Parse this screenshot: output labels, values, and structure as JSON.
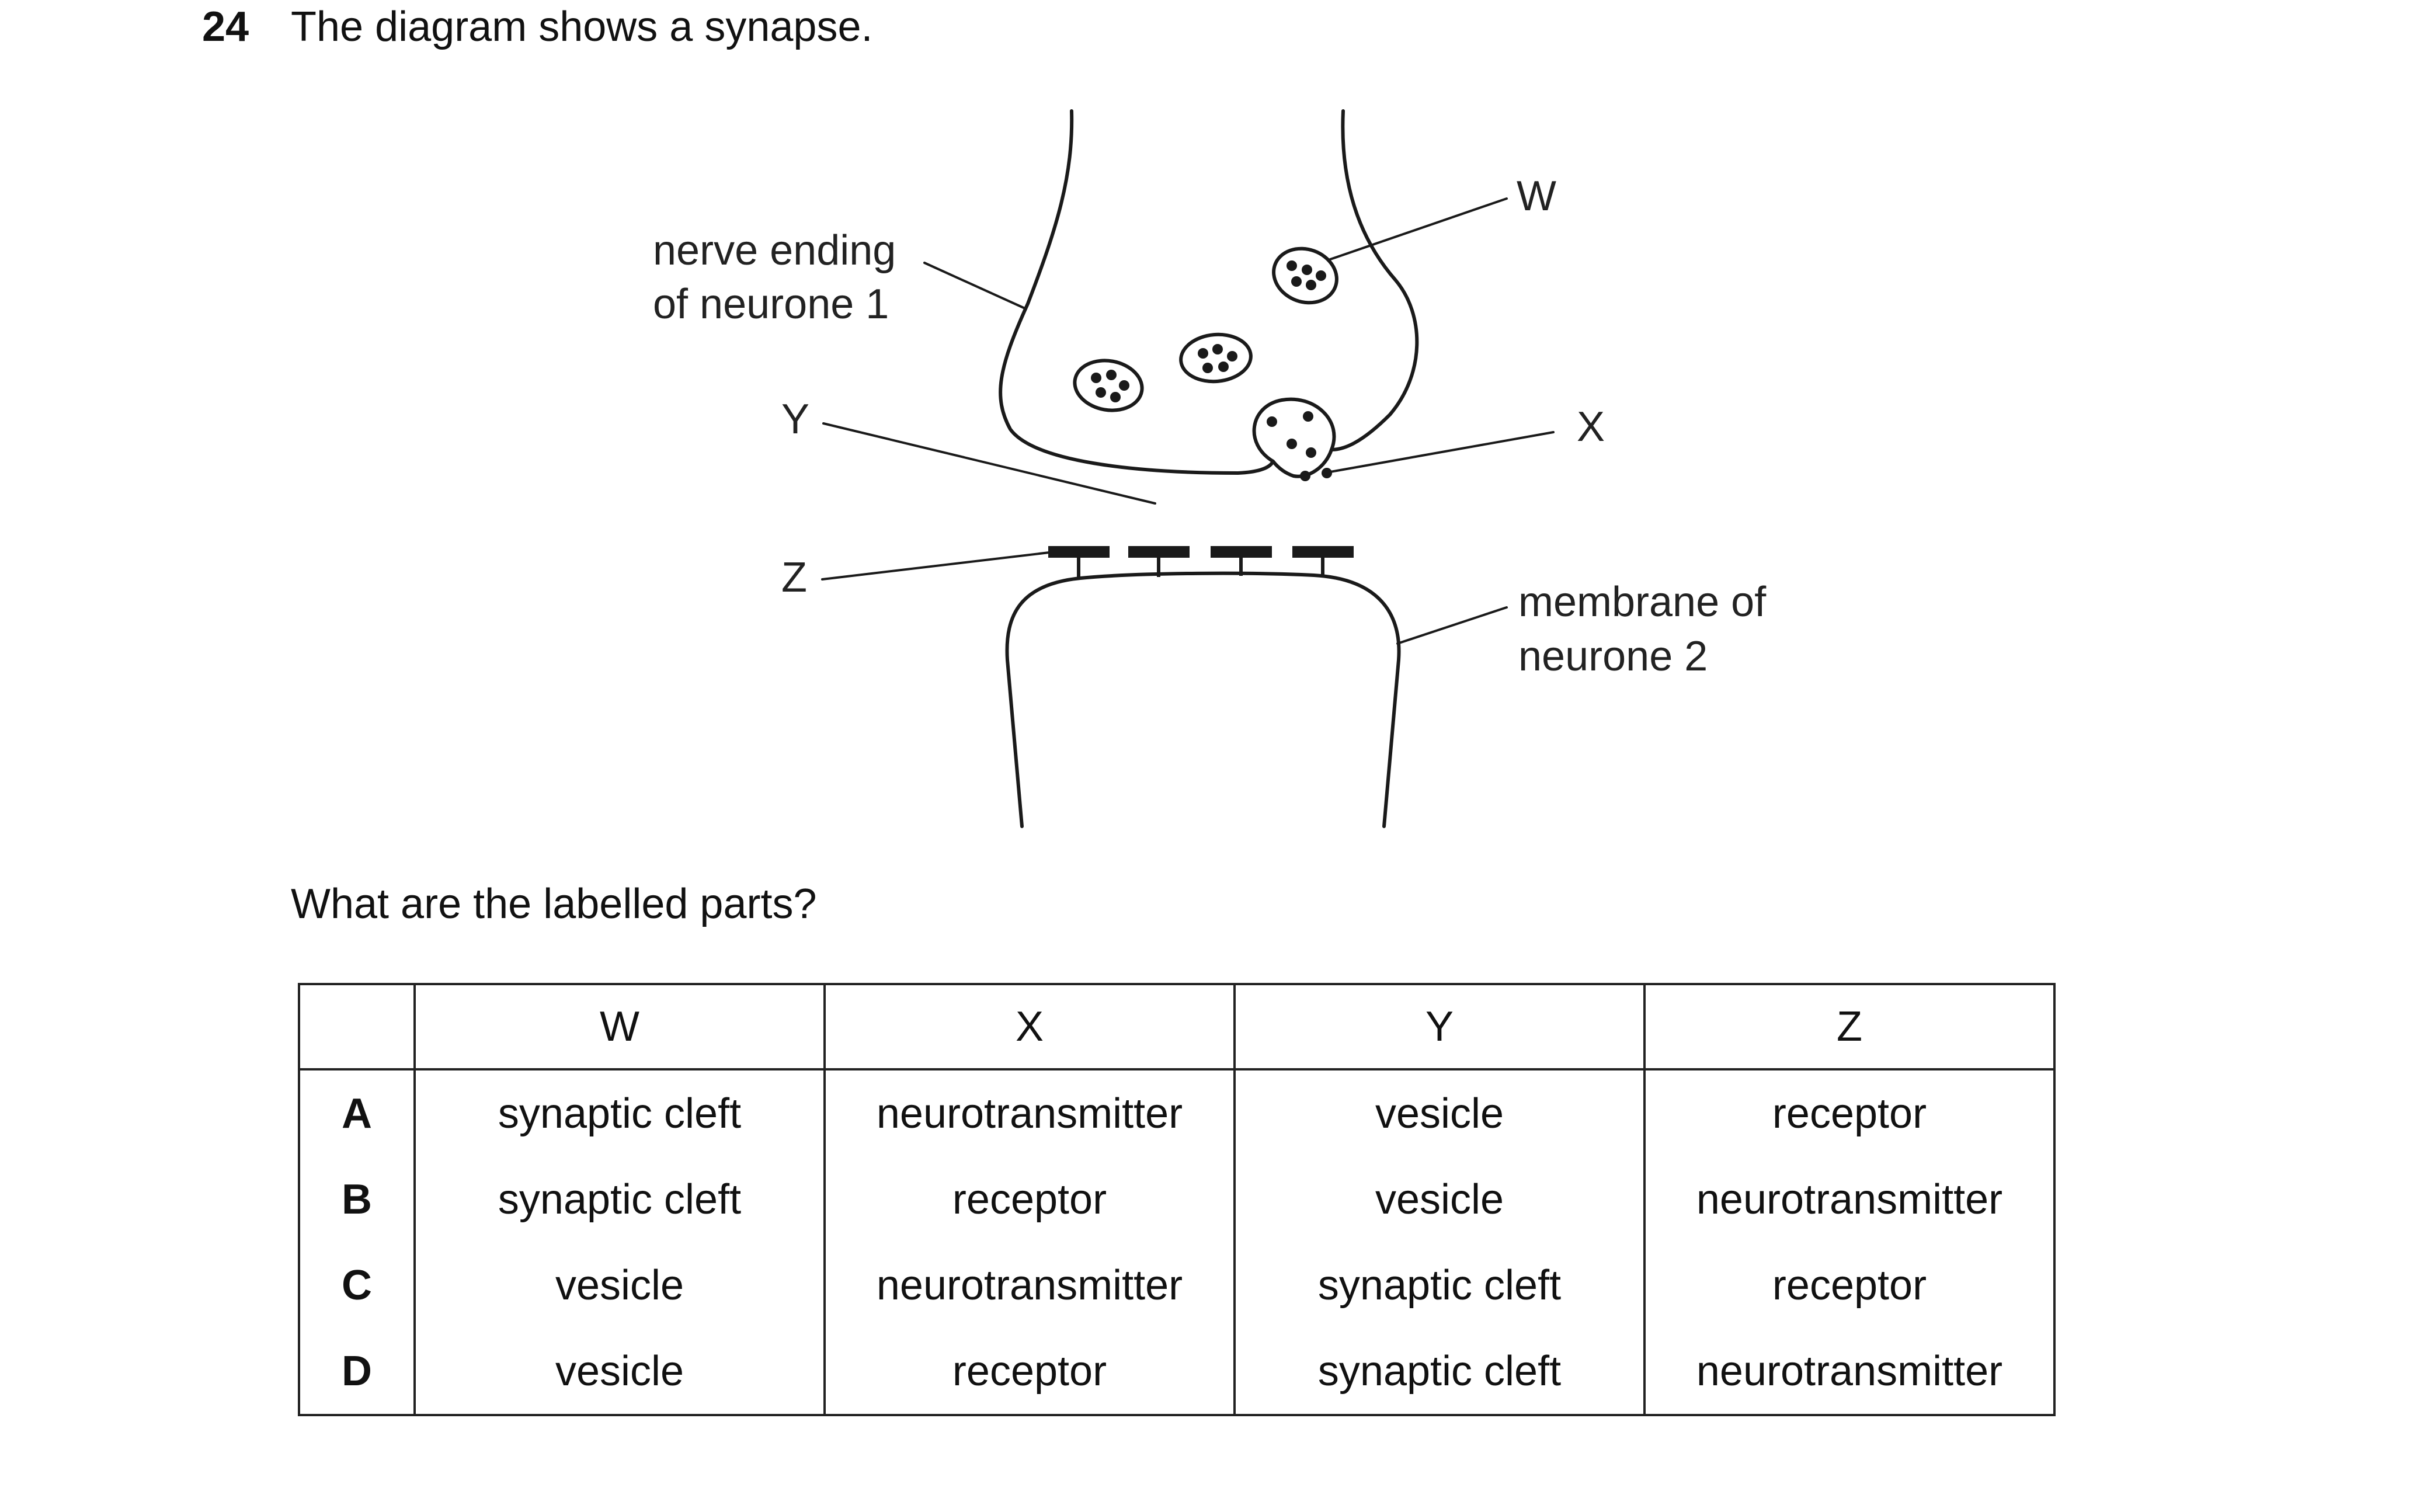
{
  "question": {
    "number": "24",
    "text": "The diagram shows a synapse.",
    "prompt": "What are the labelled parts?"
  },
  "diagram": {
    "labels": {
      "nerve_ending_line1": "nerve ending",
      "nerve_ending_line2": "of neurone 1",
      "membrane_line1": "membrane of",
      "membrane_line2": "neurone 2",
      "W": "W",
      "X": "X",
      "Y": "Y",
      "Z": "Z"
    }
  },
  "table": {
    "headers": [
      "",
      "W",
      "X",
      "Y",
      "Z"
    ],
    "rows": [
      {
        "option": "A",
        "cells": [
          "synaptic cleft",
          "neurotransmitter",
          "vesicle",
          "receptor"
        ]
      },
      {
        "option": "B",
        "cells": [
          "synaptic cleft",
          "receptor",
          "vesicle",
          "neurotransmitter"
        ]
      },
      {
        "option": "C",
        "cells": [
          "vesicle",
          "neurotransmitter",
          "synaptic cleft",
          "receptor"
        ]
      },
      {
        "option": "D",
        "cells": [
          "vesicle",
          "receptor",
          "synaptic cleft",
          "neurotransmitter"
        ]
      }
    ]
  }
}
